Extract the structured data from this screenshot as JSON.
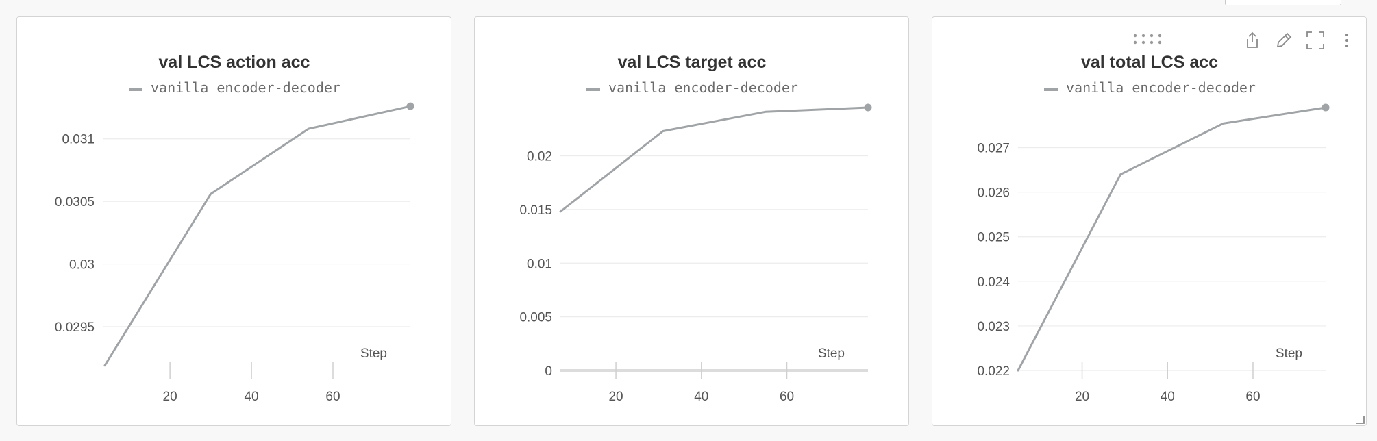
{
  "chart_data": [
    {
      "type": "line",
      "title": "val LCS action acc",
      "xlabel": "Step",
      "ylabel": "",
      "xlim": [
        3.5,
        79
      ],
      "ylim": [
        0.02915,
        0.03125
      ],
      "x_ticks": [
        20,
        40,
        60
      ],
      "y_ticks": [
        0.0295,
        0.03,
        0.0305,
        0.031
      ],
      "y_tick_labels": [
        "0.0295",
        "0.03",
        "0.0305",
        "0.031"
      ],
      "legend": "top",
      "grid": true,
      "series": [
        {
          "name": "vanilla encoder-decoder",
          "color": "#a0a4a6",
          "x": [
            4,
            30,
            54,
            79
          ],
          "y": [
            0.02919,
            0.03056,
            0.03108,
            0.03126
          ]
        }
      ]
    },
    {
      "type": "line",
      "title": "val LCS target acc",
      "xlabel": "Step",
      "ylabel": "",
      "xlim": [
        7,
        79
      ],
      "ylim": [
        0,
        0.0245
      ],
      "x_ticks": [
        20,
        40,
        60
      ],
      "y_ticks": [
        0,
        0.005,
        0.01,
        0.015,
        0.02
      ],
      "y_tick_labels": [
        "0",
        "0.005",
        "0.01",
        "0.015",
        "0.02"
      ],
      "legend": "top",
      "grid": true,
      "series": [
        {
          "name": "vanilla encoder-decoder",
          "color": "#a0a4a6",
          "x": [
            7,
            31,
            55,
            79
          ],
          "y": [
            0.0148,
            0.0223,
            0.0241,
            0.0245
          ]
        }
      ]
    },
    {
      "type": "line",
      "title": "val total LCS acc",
      "xlabel": "Step",
      "ylabel": "",
      "xlim": [
        5,
        77
      ],
      "ylim": [
        0.022,
        0.0279
      ],
      "x_ticks": [
        20,
        40,
        60
      ],
      "y_ticks": [
        0.022,
        0.023,
        0.024,
        0.025,
        0.026,
        0.027
      ],
      "y_tick_labels": [
        "0.022",
        "0.023",
        "0.024",
        "0.025",
        "0.026",
        "0.027"
      ],
      "legend": "top",
      "grid": true,
      "series": [
        {
          "name": "vanilla encoder-decoder",
          "color": "#a0a4a6",
          "x": [
            5,
            29,
            53,
            77
          ],
          "y": [
            0.022,
            0.0264,
            0.02754,
            0.0279
          ]
        }
      ]
    }
  ],
  "toolbar": {
    "icons": [
      "drag-handle-icon",
      "share-icon",
      "edit-icon",
      "fullscreen-icon",
      "more-vertical-icon",
      "resize-handle-icon"
    ]
  },
  "colors": {
    "line": "#a0a4a6",
    "grid": "#ececec",
    "tick": "#d0d0d0",
    "panel_border": "#d4d4d4",
    "background": "#f8f8f8"
  }
}
